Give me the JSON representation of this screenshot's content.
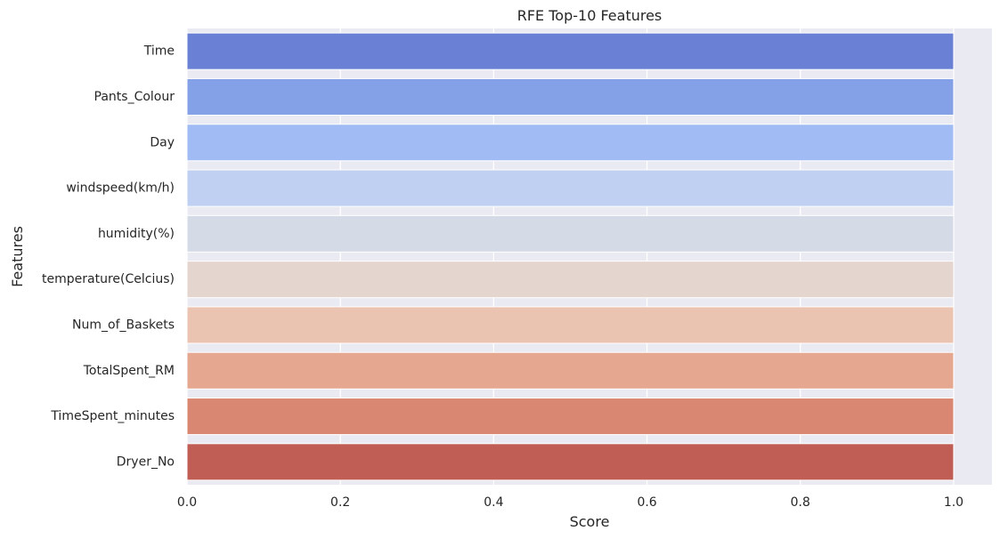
{
  "chart_data": {
    "type": "bar",
    "orientation": "horizontal",
    "title": "RFE Top-10 Features",
    "xlabel": "Score",
    "ylabel": "Features",
    "categories": [
      "Time",
      "Pants_Colour",
      "Day",
      "windspeed(km/h)",
      "humidity(%)",
      "temperature(Celcius)",
      "Num_of_Baskets",
      "TotalSpent_RM",
      "TimeSpent_minutes",
      "Dryer_No"
    ],
    "values": [
      1,
      1,
      1,
      1,
      1,
      1,
      1,
      1,
      1,
      1
    ],
    "xlim": [
      0,
      1.05
    ],
    "xticks": [
      0.0,
      0.2,
      0.4,
      0.6,
      0.8,
      1.0
    ],
    "xtick_labels": [
      "0.0",
      "0.2",
      "0.4",
      "0.6",
      "0.8",
      "1.0"
    ],
    "grid": true,
    "background": "#eaeaf2",
    "grid_color": "#ffffff",
    "colors": [
      "#6a80d4",
      "#84a0e6",
      "#a1bbf4",
      "#bfd0f2",
      "#d5dbe6",
      "#e4d6cf",
      "#ebc4b1",
      "#e5a790",
      "#d98672",
      "#c05d55"
    ]
  }
}
